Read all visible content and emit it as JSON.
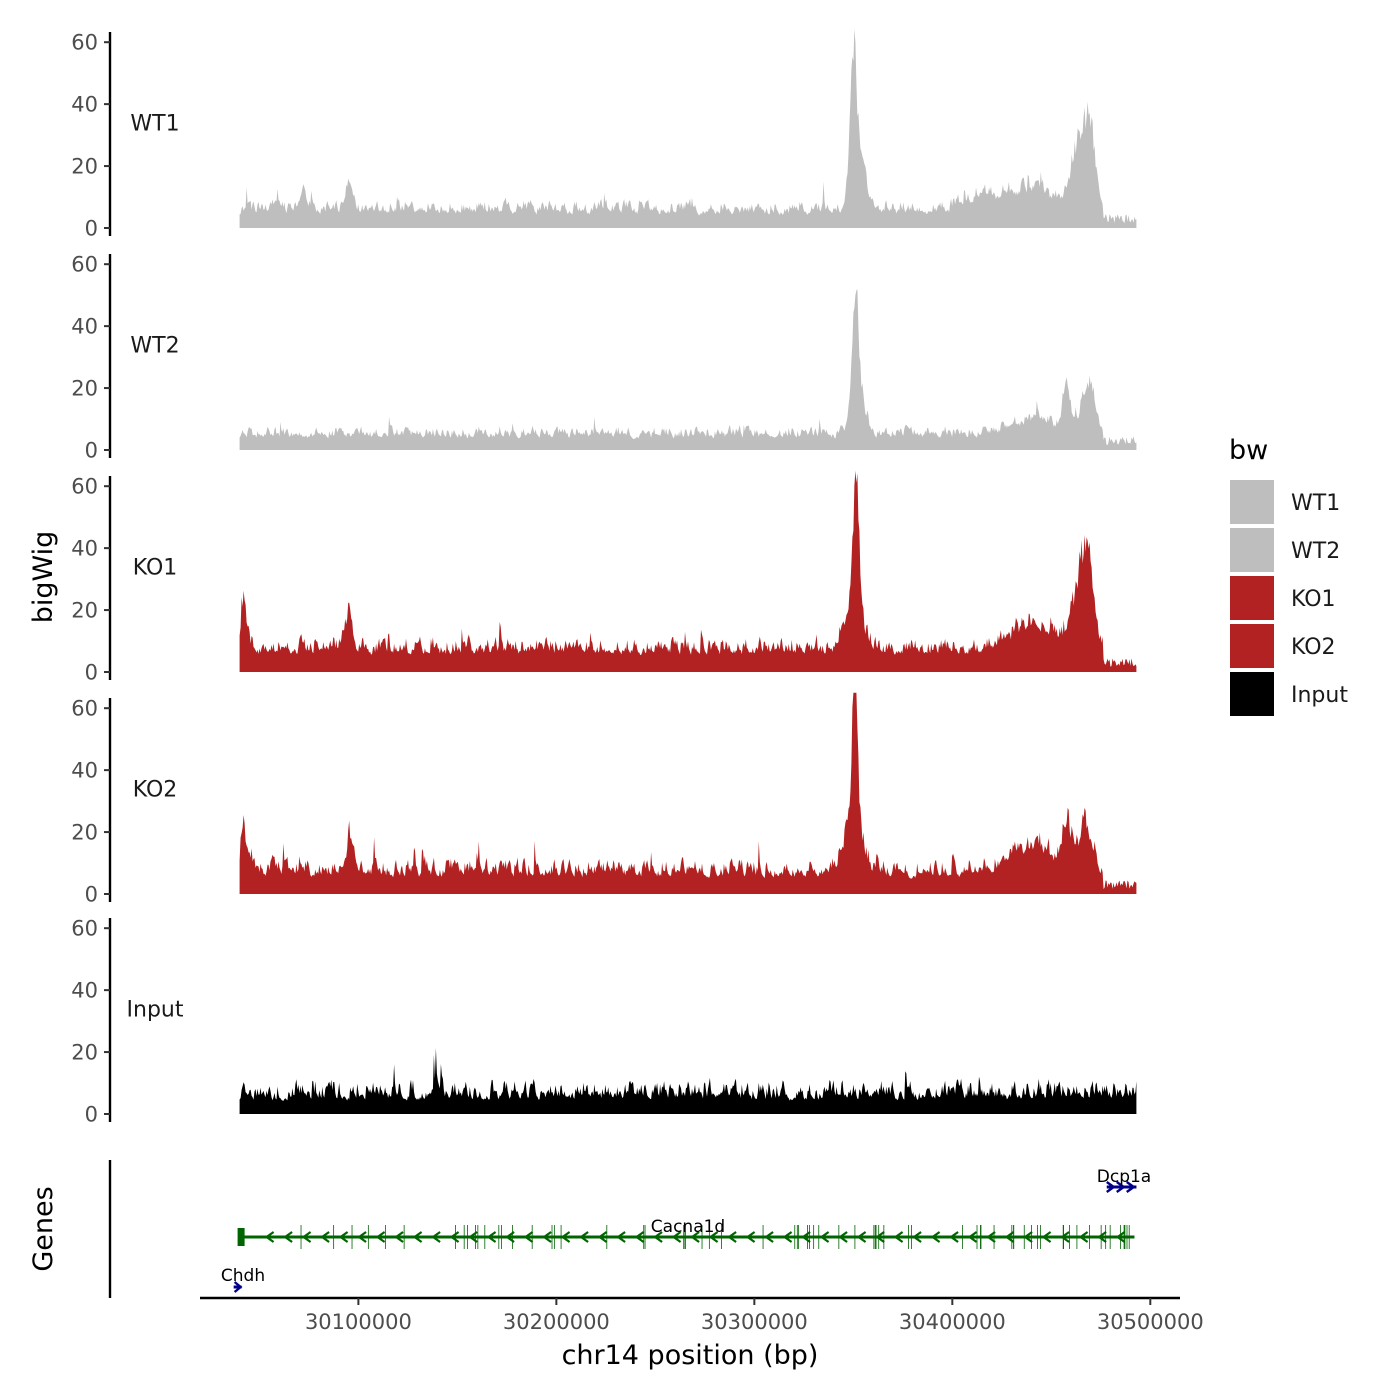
{
  "chart_data": {
    "type": "area",
    "chromosome": "chr14",
    "xlabel": "chr14 position (bp)",
    "ylabel": "bigWig",
    "gene_track_label": "Genes",
    "xlim": [
      30020000,
      30515000
    ],
    "x_ticks": [
      30100000,
      30200000,
      30300000,
      30400000,
      30500000
    ],
    "x_tick_labels": [
      "30100000",
      "30200000",
      "30300000",
      "30400000",
      "30500000"
    ],
    "ylim": [
      0,
      65
    ],
    "y_ticks": [
      0,
      20,
      40,
      60
    ],
    "y_tick_labels": [
      "0",
      "20",
      "40",
      "60"
    ],
    "data_range": [
      30040000,
      30493000
    ],
    "series": [
      {
        "name": "WT1",
        "color": "#bebebe",
        "baseline": 3.5,
        "noise": 6,
        "peaks": [
          {
            "x": 30072000,
            "height": 8,
            "width": 2500
          },
          {
            "x": 30095000,
            "height": 9,
            "width": 2500
          },
          {
            "x": 30350000,
            "height": 42,
            "width": 2200
          },
          {
            "x": 30352500,
            "height": 20,
            "width": 5000
          },
          {
            "x": 30415000,
            "height": 5,
            "width": 12000
          },
          {
            "x": 30440000,
            "height": 9,
            "width": 14000
          },
          {
            "x": 30465000,
            "height": 25,
            "width": 6000
          },
          {
            "x": 30470000,
            "height": 20,
            "width": 3500
          }
        ]
      },
      {
        "name": "WT2",
        "color": "#bebebe",
        "baseline": 3,
        "noise": 5,
        "peaks": [
          {
            "x": 30351000,
            "height": 36,
            "width": 2200
          },
          {
            "x": 30352500,
            "height": 14,
            "width": 5000
          },
          {
            "x": 30440000,
            "height": 6,
            "width": 14000
          },
          {
            "x": 30458000,
            "height": 14,
            "width": 3000
          },
          {
            "x": 30469000,
            "height": 18,
            "width": 4500
          }
        ]
      },
      {
        "name": "KO1",
        "color": "#b22222",
        "baseline": 4.5,
        "noise": 8,
        "peaks": [
          {
            "x": 30042000,
            "height": 18,
            "width": 2000
          },
          {
            "x": 30095000,
            "height": 14,
            "width": 3000
          },
          {
            "x": 30351500,
            "height": 48,
            "width": 2000
          },
          {
            "x": 30350000,
            "height": 18,
            "width": 6000
          },
          {
            "x": 30440000,
            "height": 10,
            "width": 15000
          },
          {
            "x": 30465000,
            "height": 24,
            "width": 6000
          },
          {
            "x": 30469000,
            "height": 18,
            "width": 3500
          }
        ]
      },
      {
        "name": "KO2",
        "color": "#b22222",
        "baseline": 4.5,
        "noise": 8,
        "peaks": [
          {
            "x": 30042000,
            "height": 16,
            "width": 2000
          },
          {
            "x": 30096000,
            "height": 12,
            "width": 3000
          },
          {
            "x": 30351000,
            "height": 56,
            "width": 1800
          },
          {
            "x": 30350000,
            "height": 20,
            "width": 6000
          },
          {
            "x": 30440000,
            "height": 9,
            "width": 15000
          },
          {
            "x": 30458000,
            "height": 15,
            "width": 3000
          },
          {
            "x": 30467000,
            "height": 18,
            "width": 4000
          }
        ]
      },
      {
        "name": "Input",
        "color": "#000000",
        "baseline": 3.5,
        "noise": 9,
        "peaks": []
      }
    ],
    "legend": {
      "title": "bw",
      "entries": [
        {
          "label": "WT1",
          "color": "#bebebe"
        },
        {
          "label": "WT2",
          "color": "#bebebe"
        },
        {
          "label": "KO1",
          "color": "#b22222"
        },
        {
          "label": "KO2",
          "color": "#b22222"
        },
        {
          "label": "Input",
          "color": "#000000"
        }
      ]
    },
    "genes": [
      {
        "name": "Dcp1a",
        "start": 30478000,
        "end": 30493000,
        "strand": "+",
        "row": 0,
        "color": "#00008b"
      },
      {
        "name": "Cacna1d",
        "start": 30040000,
        "end": 30492000,
        "strand": "-",
        "row": 1,
        "color": "#006400"
      },
      {
        "name": "Chdh",
        "start": 30037000,
        "end": 30041000,
        "strand": "+",
        "row": 2,
        "color": "#00008b"
      }
    ]
  }
}
